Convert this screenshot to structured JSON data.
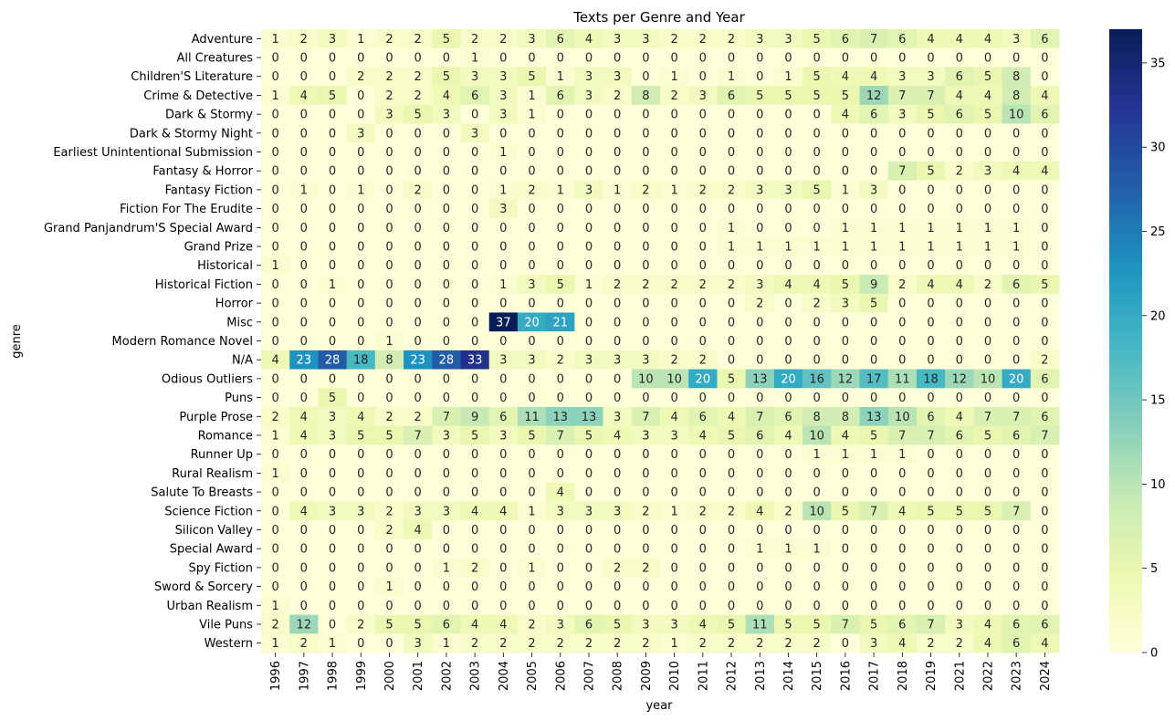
{
  "chart_data": {
    "type": "heatmap",
    "title": "Texts per Genre and Year",
    "xlabel": "year",
    "ylabel": "genre",
    "x": [
      "1996",
      "1997",
      "1998",
      "1999",
      "2000",
      "2001",
      "2002",
      "2003",
      "2004",
      "2005",
      "2006",
      "2007",
      "2008",
      "2009",
      "2010",
      "2011",
      "2012",
      "2013",
      "2014",
      "2015",
      "2016",
      "2017",
      "2018",
      "2019",
      "2021",
      "2022",
      "2023",
      "2024"
    ],
    "y": [
      "Adventure",
      "All Creatures",
      "Children'S Literature",
      "Crime & Detective",
      "Dark & Stormy",
      "Dark & Stormy Night",
      "Earliest Unintentional Submission",
      "Fantasy & Horror",
      "Fantasy Fiction",
      "Fiction For The Erudite",
      "Grand Panjandrum'S Special Award",
      "Grand Prize",
      "Historical",
      "Historical Fiction",
      "Horror",
      "Misc",
      "Modern Romance Novel",
      "N/A",
      "Odious Outliers",
      "Puns",
      "Purple Prose",
      "Romance",
      "Runner Up",
      "Rural Realism",
      "Salute To Breasts",
      "Science Fiction",
      "Silicon Valley",
      "Special Award",
      "Spy Fiction",
      "Sword & Sorcery",
      "Urban Realism",
      "Vile Puns",
      "Western"
    ],
    "z": [
      [
        1,
        2,
        3,
        1,
        2,
        2,
        5,
        2,
        2,
        3,
        6,
        4,
        3,
        3,
        2,
        2,
        2,
        3,
        3,
        5,
        6,
        7,
        6,
        4,
        4,
        4,
        3,
        6
      ],
      [
        0,
        0,
        0,
        0,
        0,
        0,
        0,
        1,
        0,
        0,
        0,
        0,
        0,
        0,
        0,
        0,
        0,
        0,
        0,
        0,
        0,
        0,
        0,
        0,
        0,
        0,
        0,
        0
      ],
      [
        0,
        0,
        0,
        2,
        2,
        2,
        5,
        3,
        3,
        5,
        1,
        3,
        3,
        0,
        1,
        0,
        1,
        0,
        1,
        5,
        4,
        4,
        3,
        3,
        6,
        5,
        8,
        0
      ],
      [
        1,
        4,
        5,
        0,
        2,
        2,
        4,
        6,
        3,
        1,
        6,
        3,
        2,
        8,
        2,
        3,
        6,
        5,
        5,
        5,
        5,
        12,
        7,
        7,
        4,
        4,
        8,
        4
      ],
      [
        0,
        0,
        0,
        0,
        3,
        5,
        3,
        0,
        3,
        1,
        0,
        0,
        0,
        0,
        0,
        0,
        0,
        0,
        0,
        0,
        4,
        6,
        3,
        5,
        6,
        5,
        10,
        6
      ],
      [
        0,
        0,
        0,
        3,
        0,
        0,
        0,
        3,
        0,
        0,
        0,
        0,
        0,
        0,
        0,
        0,
        0,
        0,
        0,
        0,
        0,
        0,
        0,
        0,
        0,
        0,
        0,
        0
      ],
      [
        0,
        0,
        0,
        0,
        0,
        0,
        0,
        0,
        1,
        0,
        0,
        0,
        0,
        0,
        0,
        0,
        0,
        0,
        0,
        0,
        0,
        0,
        0,
        0,
        0,
        0,
        0,
        0
      ],
      [
        0,
        0,
        0,
        0,
        0,
        0,
        0,
        0,
        0,
        0,
        0,
        0,
        0,
        0,
        0,
        0,
        0,
        0,
        0,
        0,
        0,
        0,
        7,
        5,
        2,
        3,
        4,
        4
      ],
      [
        0,
        1,
        0,
        1,
        0,
        2,
        0,
        0,
        1,
        2,
        1,
        3,
        1,
        2,
        1,
        2,
        2,
        3,
        3,
        5,
        1,
        3,
        0,
        0,
        0,
        0,
        0,
        0
      ],
      [
        0,
        0,
        0,
        0,
        0,
        0,
        0,
        0,
        3,
        0,
        0,
        0,
        0,
        0,
        0,
        0,
        0,
        0,
        0,
        0,
        0,
        0,
        0,
        0,
        0,
        0,
        0,
        0
      ],
      [
        0,
        0,
        0,
        0,
        0,
        0,
        0,
        0,
        0,
        0,
        0,
        0,
        0,
        0,
        0,
        0,
        1,
        0,
        0,
        0,
        1,
        1,
        1,
        1,
        1,
        1,
        1,
        0
      ],
      [
        0,
        0,
        0,
        0,
        0,
        0,
        0,
        0,
        0,
        0,
        0,
        0,
        0,
        0,
        0,
        0,
        1,
        1,
        1,
        1,
        1,
        1,
        1,
        1,
        1,
        1,
        1,
        0
      ],
      [
        1,
        0,
        0,
        0,
        0,
        0,
        0,
        0,
        0,
        0,
        0,
        0,
        0,
        0,
        0,
        0,
        0,
        0,
        0,
        0,
        0,
        0,
        0,
        0,
        0,
        0,
        0,
        0
      ],
      [
        0,
        0,
        1,
        0,
        0,
        0,
        0,
        0,
        1,
        3,
        5,
        1,
        2,
        2,
        2,
        2,
        2,
        3,
        4,
        4,
        5,
        9,
        2,
        4,
        4,
        2,
        6,
        5
      ],
      [
        0,
        0,
        0,
        0,
        0,
        0,
        0,
        0,
        0,
        0,
        0,
        0,
        0,
        0,
        0,
        0,
        0,
        2,
        0,
        2,
        3,
        5,
        0,
        0,
        0,
        0,
        0,
        0
      ],
      [
        0,
        0,
        0,
        0,
        0,
        0,
        0,
        0,
        37,
        20,
        21,
        0,
        0,
        0,
        0,
        0,
        0,
        0,
        0,
        0,
        0,
        0,
        0,
        0,
        0,
        0,
        0,
        0
      ],
      [
        0,
        0,
        0,
        0,
        1,
        0,
        0,
        0,
        0,
        0,
        0,
        0,
        0,
        0,
        0,
        0,
        0,
        0,
        0,
        0,
        0,
        0,
        0,
        0,
        0,
        0,
        0,
        0
      ],
      [
        4,
        23,
        28,
        18,
        8,
        23,
        28,
        33,
        3,
        3,
        2,
        3,
        3,
        3,
        2,
        2,
        0,
        0,
        0,
        0,
        0,
        0,
        0,
        0,
        0,
        0,
        0,
        2
      ],
      [
        0,
        0,
        0,
        0,
        0,
        0,
        0,
        0,
        0,
        0,
        0,
        0,
        0,
        10,
        10,
        20,
        5,
        13,
        20,
        16,
        12,
        17,
        11,
        18,
        12,
        10,
        20,
        6
      ],
      [
        0,
        0,
        5,
        0,
        0,
        0,
        0,
        0,
        0,
        0,
        0,
        0,
        0,
        0,
        0,
        0,
        0,
        0,
        0,
        0,
        0,
        0,
        0,
        0,
        0,
        0,
        0,
        0
      ],
      [
        2,
        4,
        3,
        4,
        2,
        2,
        7,
        9,
        6,
        11,
        13,
        13,
        3,
        7,
        4,
        6,
        4,
        7,
        6,
        8,
        8,
        13,
        10,
        6,
        4,
        7,
        7,
        6
      ],
      [
        1,
        4,
        3,
        5,
        5,
        7,
        3,
        5,
        3,
        5,
        7,
        5,
        4,
        3,
        3,
        4,
        5,
        6,
        4,
        10,
        4,
        5,
        7,
        7,
        6,
        5,
        6,
        7
      ],
      [
        0,
        0,
        0,
        0,
        0,
        0,
        0,
        0,
        0,
        0,
        0,
        0,
        0,
        0,
        0,
        0,
        0,
        0,
        0,
        1,
        1,
        1,
        1,
        0,
        0,
        0,
        0,
        0
      ],
      [
        1,
        0,
        0,
        0,
        0,
        0,
        0,
        0,
        0,
        0,
        0,
        0,
        0,
        0,
        0,
        0,
        0,
        0,
        0,
        0,
        0,
        0,
        0,
        0,
        0,
        0,
        0,
        0
      ],
      [
        0,
        0,
        0,
        0,
        0,
        0,
        0,
        0,
        0,
        0,
        4,
        0,
        0,
        0,
        0,
        0,
        0,
        0,
        0,
        0,
        0,
        0,
        0,
        0,
        0,
        0,
        0,
        0
      ],
      [
        0,
        4,
        3,
        3,
        2,
        3,
        3,
        4,
        4,
        1,
        3,
        3,
        3,
        2,
        1,
        2,
        2,
        4,
        2,
        10,
        5,
        7,
        4,
        5,
        5,
        5,
        7,
        0
      ],
      [
        0,
        0,
        0,
        0,
        2,
        4,
        0,
        0,
        0,
        0,
        0,
        0,
        0,
        0,
        0,
        0,
        0,
        0,
        0,
        0,
        0,
        0,
        0,
        0,
        0,
        0,
        0,
        0
      ],
      [
        0,
        0,
        0,
        0,
        0,
        0,
        0,
        0,
        0,
        0,
        0,
        0,
        0,
        0,
        0,
        0,
        0,
        1,
        1,
        1,
        0,
        0,
        0,
        0,
        0,
        0,
        0,
        0
      ],
      [
        0,
        0,
        0,
        0,
        0,
        0,
        1,
        2,
        0,
        1,
        0,
        0,
        2,
        2,
        0,
        0,
        0,
        0,
        0,
        0,
        0,
        0,
        0,
        0,
        0,
        0,
        0,
        0
      ],
      [
        0,
        0,
        0,
        0,
        1,
        0,
        0,
        0,
        0,
        0,
        0,
        0,
        0,
        0,
        0,
        0,
        0,
        0,
        0,
        0,
        0,
        0,
        0,
        0,
        0,
        0,
        0,
        0
      ],
      [
        1,
        0,
        0,
        0,
        0,
        0,
        0,
        0,
        0,
        0,
        0,
        0,
        0,
        0,
        0,
        0,
        0,
        0,
        0,
        0,
        0,
        0,
        0,
        0,
        0,
        0,
        0,
        0
      ],
      [
        2,
        12,
        0,
        2,
        5,
        5,
        6,
        4,
        4,
        2,
        3,
        6,
        5,
        3,
        3,
        4,
        5,
        11,
        5,
        5,
        7,
        5,
        6,
        7,
        3,
        4,
        6,
        6
      ],
      [
        1,
        2,
        1,
        0,
        0,
        3,
        1,
        2,
        2,
        2,
        2,
        2,
        2,
        2,
        1,
        2,
        2,
        2,
        2,
        2,
        0,
        3,
        4,
        2,
        2,
        4,
        6,
        4
      ]
    ],
    "zlim": [
      0,
      37
    ],
    "colorbar_ticks": [
      0,
      5,
      10,
      15,
      20,
      25,
      30,
      35
    ],
    "colormap": "YlGnBu",
    "annotations": true,
    "grid": false,
    "legend": "colorbar-right"
  }
}
